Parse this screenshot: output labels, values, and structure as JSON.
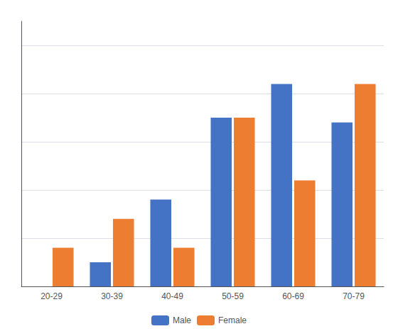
{
  "chart_data": {
    "type": "bar",
    "categories": [
      "20-29",
      "30-39",
      "40-49",
      "50-59",
      "60-69",
      "70-79"
    ],
    "series": [
      {
        "name": "Male",
        "color": "#4472C4",
        "values": [
          0,
          5,
          18,
          35,
          42,
          34
        ]
      },
      {
        "name": "Female",
        "color": "#ED7D31",
        "values": [
          8,
          14,
          8,
          35,
          22,
          42
        ]
      }
    ],
    "ylim": [
      0,
      55
    ],
    "yticks": [
      0,
      10,
      20,
      30,
      40,
      50
    ],
    "grid": true,
    "legend": "bottom",
    "tick_labels": "x"
  }
}
